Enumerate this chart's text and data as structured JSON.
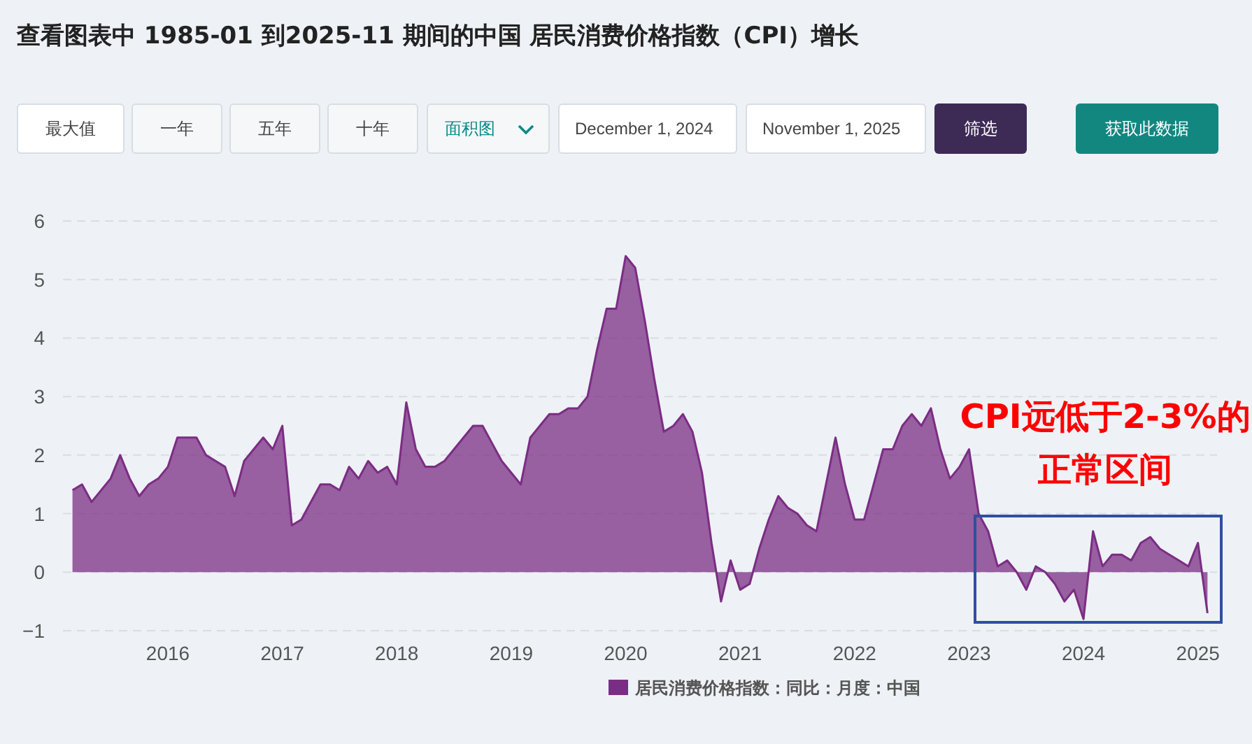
{
  "chart_data": {
    "type": "area",
    "title": "查看图表中 1985-01 到2025-11 期间的中国 居民消费价格指数（CPI）增长",
    "x": [
      "2015-03",
      "2015-04",
      "2015-05",
      "2015-06",
      "2015-07",
      "2015-08",
      "2015-09",
      "2015-10",
      "2015-11",
      "2015-12",
      "2016-01",
      "2016-02",
      "2016-03",
      "2016-04",
      "2016-05",
      "2016-06",
      "2016-07",
      "2016-08",
      "2016-09",
      "2016-10",
      "2016-11",
      "2016-12",
      "2017-01",
      "2017-02",
      "2017-03",
      "2017-04",
      "2017-05",
      "2017-06",
      "2017-07",
      "2017-08",
      "2017-09",
      "2017-10",
      "2017-11",
      "2017-12",
      "2018-01",
      "2018-02",
      "2018-03",
      "2018-04",
      "2018-05",
      "2018-06",
      "2018-07",
      "2018-08",
      "2018-09",
      "2018-10",
      "2018-11",
      "2018-12",
      "2019-01",
      "2019-02",
      "2019-03",
      "2019-04",
      "2019-05",
      "2019-06",
      "2019-07",
      "2019-08",
      "2019-09",
      "2019-10",
      "2019-11",
      "2019-12",
      "2020-01",
      "2020-02",
      "2020-03",
      "2020-04",
      "2020-05",
      "2020-06",
      "2020-07",
      "2020-08",
      "2020-09",
      "2020-10",
      "2020-11",
      "2020-12",
      "2021-01",
      "2021-02",
      "2021-03",
      "2021-04",
      "2021-05",
      "2021-06",
      "2021-07",
      "2021-08",
      "2021-09",
      "2021-10",
      "2021-11",
      "2021-12",
      "2022-01",
      "2022-02",
      "2022-03",
      "2022-04",
      "2022-05",
      "2022-06",
      "2022-07",
      "2022-08",
      "2022-09",
      "2022-10",
      "2022-11",
      "2022-12",
      "2023-01",
      "2023-02",
      "2023-03",
      "2023-04",
      "2023-05",
      "2023-06",
      "2023-07",
      "2023-08",
      "2023-09",
      "2023-10",
      "2023-11",
      "2023-12",
      "2024-01",
      "2024-02",
      "2024-03",
      "2024-04",
      "2024-05",
      "2024-06",
      "2024-07",
      "2024-08",
      "2024-09",
      "2024-10",
      "2024-11",
      "2024-12",
      "2025-01",
      "2025-02"
    ],
    "series": [
      {
        "name": "居民消费价格指数：同比：月度：中国",
        "color": "#7b2d84",
        "values": [
          1.4,
          1.5,
          1.2,
          1.4,
          1.6,
          2.0,
          1.6,
          1.3,
          1.5,
          1.6,
          1.8,
          2.3,
          2.3,
          2.3,
          2.0,
          1.9,
          1.8,
          1.3,
          1.9,
          2.1,
          2.3,
          2.1,
          2.5,
          0.8,
          0.9,
          1.2,
          1.5,
          1.5,
          1.4,
          1.8,
          1.6,
          1.9,
          1.7,
          1.8,
          1.5,
          2.9,
          2.1,
          1.8,
          1.8,
          1.9,
          2.1,
          2.3,
          2.5,
          2.5,
          2.2,
          1.9,
          1.7,
          1.5,
          2.3,
          2.5,
          2.7,
          2.7,
          2.8,
          2.8,
          3.0,
          3.8,
          4.5,
          4.5,
          5.4,
          5.2,
          4.3,
          3.3,
          2.4,
          2.5,
          2.7,
          2.4,
          1.7,
          0.5,
          -0.5,
          0.2,
          -0.3,
          -0.2,
          0.4,
          0.9,
          1.3,
          1.1,
          1.0,
          0.8,
          0.7,
          1.5,
          2.3,
          1.5,
          0.9,
          0.9,
          1.5,
          2.1,
          2.1,
          2.5,
          2.7,
          2.5,
          2.8,
          2.1,
          1.6,
          1.8,
          2.1,
          1.0,
          0.7,
          0.1,
          0.2,
          0.0,
          -0.3,
          0.1,
          0.0,
          -0.2,
          -0.5,
          -0.3,
          -0.8,
          0.7,
          0.1,
          0.3,
          0.3,
          0.2,
          0.5,
          0.6,
          0.4,
          0.3,
          0.2,
          0.1,
          0.5,
          -0.7
        ]
      }
    ],
    "xlim": [
      "2015-02",
      "2025-03"
    ],
    "xticks": [
      "2016",
      "2017",
      "2018",
      "2019",
      "2020",
      "2021",
      "2022",
      "2023",
      "2024",
      "2025"
    ],
    "ylim": [
      -1,
      6
    ],
    "yticks": [
      -1,
      0,
      1,
      2,
      3,
      4,
      5,
      6
    ],
    "grid": "y",
    "legend": "bottom",
    "annotations": [
      "CPI远低于2-3%的",
      "正常区间",
      "最大值",
      "一年",
      "五年",
      "十年",
      "面积图",
      "December 1, 2024",
      "November 1, 2025",
      "筛选",
      "获取此数据"
    ]
  }
}
